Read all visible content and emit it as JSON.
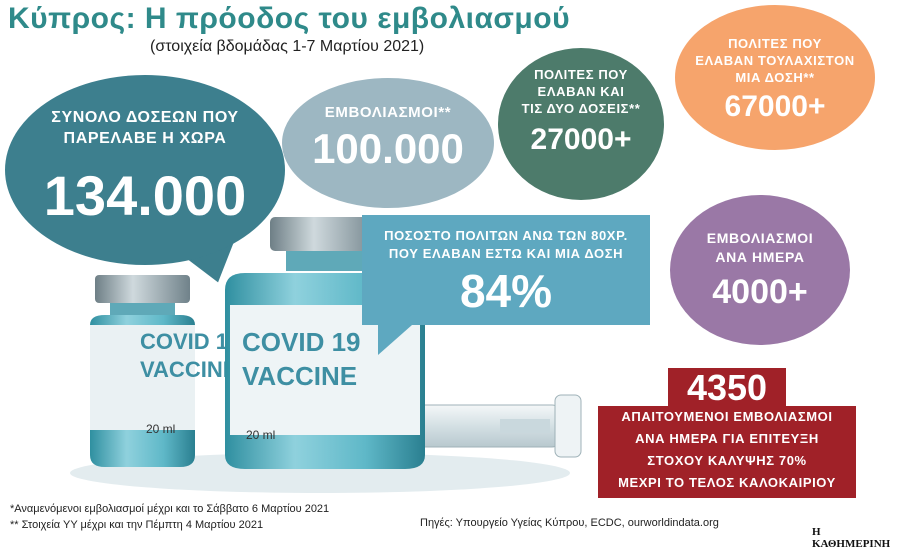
{
  "header": {
    "title": "Κύπρος: Η πρόοδος του εμβολιασμού",
    "subtitle": "(στοιχεία βδομάδας 1-7 Μαρτίου 2021)"
  },
  "stats": {
    "total_doses": {
      "label_line1": "ΣΥΝΟΛΟ ΔΟΣΕΩΝ ΠΟΥ",
      "label_line2": "ΠΑΡΕΛΑΒΕ Η ΧΩΡΑ",
      "value": "134.000",
      "color": "#3d7f8e"
    },
    "vaccinations": {
      "label": "ΕΜΒΟΛΙΑΣΜΟΙ**",
      "value": "100.000",
      "color": "#9db7c2"
    },
    "two_doses": {
      "label_line1": "ΠΟΛΙΤΕΣ ΠΟΥ",
      "label_line2": "ΕΛΑΒΑΝ ΚΑΙ",
      "label_line3": "ΤΙΣ ΔΥΟ ΔΟΣΕΙΣ**",
      "value": "27000+",
      "color": "#4d7b6b"
    },
    "one_dose": {
      "label_line1": "ΠΟΛΙΤΕΣ ΠΟΥ",
      "label_line2": "ΕΛΑΒΑΝ ΤΟΥΛΑΧΙΣΤΟΝ",
      "label_line3": "ΜΙΑ ΔΟΣΗ**",
      "value": "67000+",
      "color": "#f6a46c"
    },
    "over80": {
      "label_line1": "ΠΟΣΟΣΤΟ ΠΟΛΙΤΩΝ ΑΝΩ ΤΩΝ 80ΧΡ.",
      "label_line2": "ΠΟΥ ΕΛΑΒΑΝ ΕΣΤΩ ΚΑΙ ΜΙΑ ΔΟΣΗ",
      "value": "84%",
      "color": "#5ea8c0"
    },
    "per_day": {
      "label_line1": "ΕΜΒΟΛΙΑΣΜΟΙ",
      "label_line2": "ΑΝΑ ΗΜΕΡΑ",
      "value": "4000+",
      "color": "#9a78a6"
    },
    "required": {
      "value": "4350",
      "line1": "ΑΠΑΙΤΟΥΜΕΝΟΙ ΕΜΒΟΛΙΑΣΜΟΙ",
      "line2": "ΑΝΑ ΗΜΕΡΑ ΓΙΑ ΕΠΙΤΕΥΞΗ",
      "line3": "ΣΤΟΧΟΥ ΚΑΛΥΨΗΣ 70%",
      "line4": "ΜΕΧΡΙ ΤΟ ΤΕΛΟΣ ΚΑΛΟΚΑΙΡΙΟΥ",
      "color": "#a02128"
    }
  },
  "vials": {
    "label_back_line1": "COVID 1",
    "label_back_line2": "VACCINE",
    "label_front_line1": "COVID 19",
    "label_front_line2": "VACCINE",
    "volume": "20 ml"
  },
  "footer": {
    "note1": "*Αναμενόμενοι εμβολιασμοί μέχρι και το Σάββατο 6 Μαρτίου 2021",
    "note2": "** Στοιχεία ΥΥ μέχρι και την Πέμπτη 4 Μαρτίου 2021",
    "sources": "Πηγές: Υπουργείο Υγείας Κύπρου, ECDC, ourworldindata.org",
    "brand": "Η ΚΑΘΗΜΕΡΙΝΗ"
  }
}
